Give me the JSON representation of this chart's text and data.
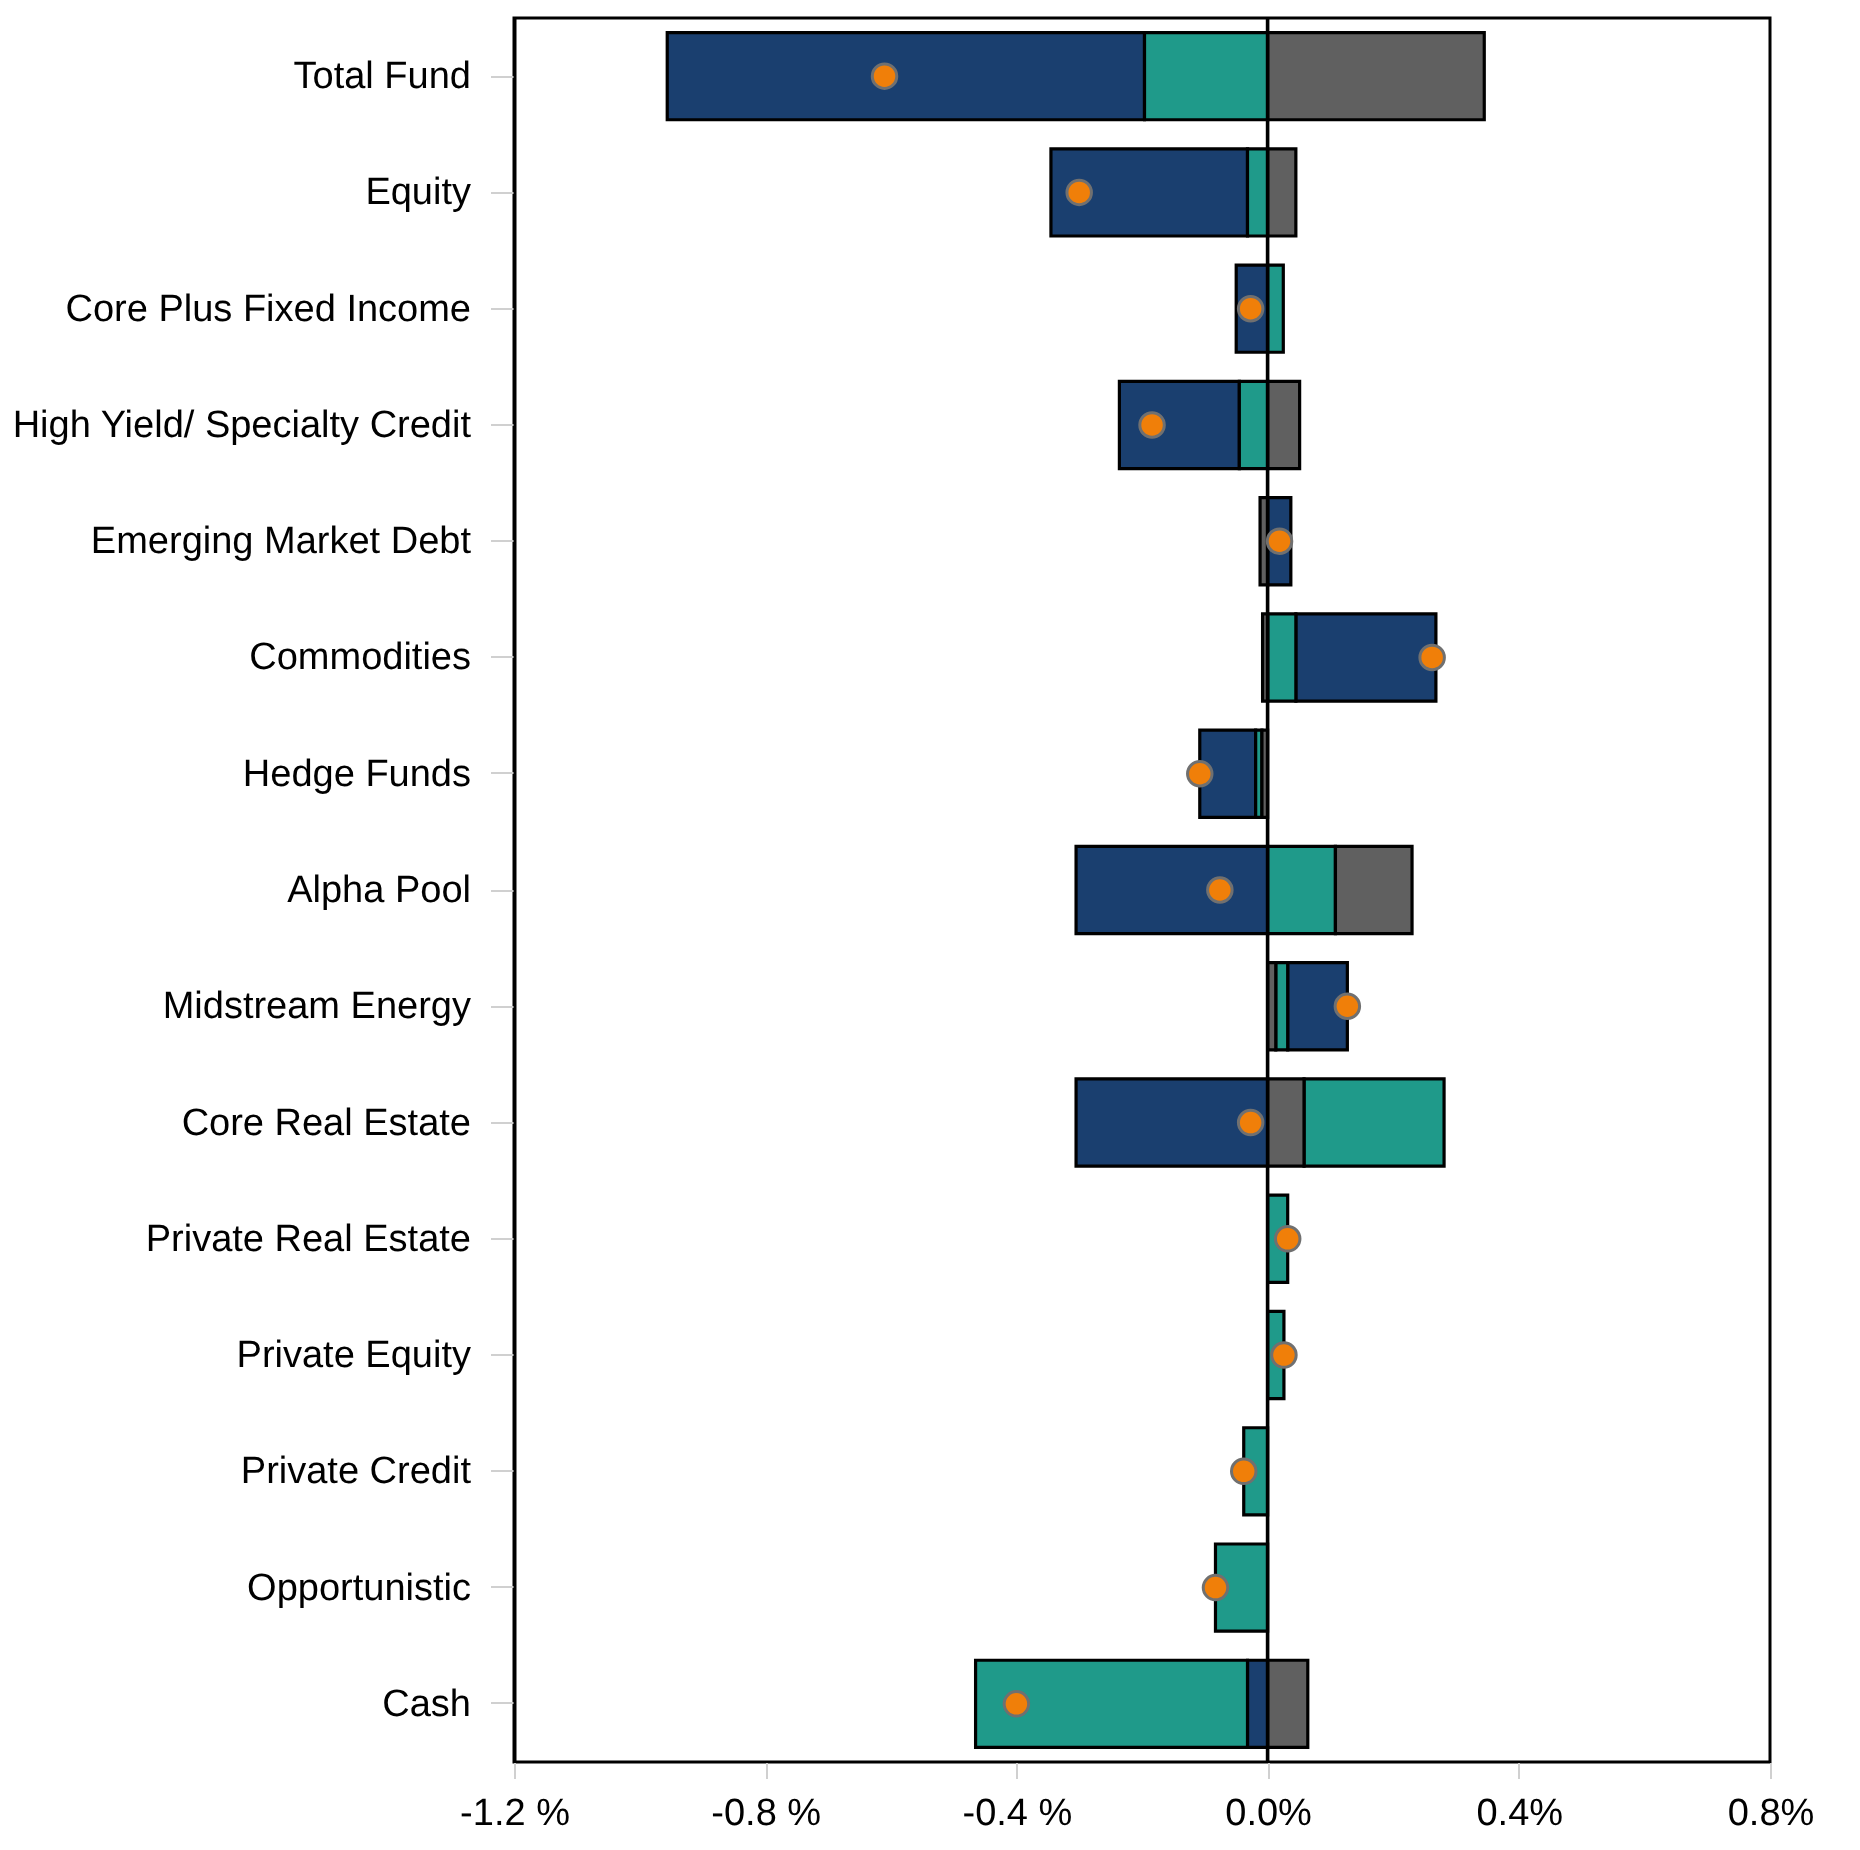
{
  "chart_data": {
    "type": "bar",
    "orientation": "horizontal",
    "categories": [
      "Total Fund",
      "Equity",
      "Core Plus Fixed Income",
      "High Yield/ Specialty Credit",
      "Emerging Market Debt",
      "Commodities",
      "Hedge Funds",
      "Alpha Pool",
      "Midstream Energy",
      "Core Real Estate",
      "Private Real Estate",
      "Private Equity",
      "Private Credit",
      "Opportunistic",
      "Cash"
    ],
    "series": [
      {
        "color": "#1a3f6f",
        "base": [
          -0.196,
          -0.032,
          0,
          -0.045,
          0,
          0.045,
          -0.019,
          0,
          0.032,
          0,
          null,
          null,
          null,
          null,
          0
        ],
        "values": [
          -0.76,
          -0.313,
          -0.05,
          -0.191,
          0.037,
          0.223,
          -0.089,
          -0.305,
          0.095,
          -0.305,
          null,
          null,
          null,
          null,
          -0.032
        ]
      },
      {
        "color": "#1f9a8a",
        "base": [
          0,
          0,
          0,
          0,
          null,
          0,
          -0.009,
          0,
          0.013,
          0.058,
          0,
          0,
          0,
          0,
          -0.032
        ],
        "values": [
          -0.196,
          -0.032,
          0.025,
          -0.045,
          null,
          0.045,
          -0.01,
          0.108,
          0.019,
          0.223,
          0.032,
          0.026,
          -0.038,
          -0.083,
          -0.433
        ]
      },
      {
        "color": "#606060",
        "base": [
          0,
          0,
          null,
          0,
          0,
          0,
          0,
          0.108,
          0,
          0,
          null,
          null,
          null,
          null,
          0
        ],
        "values": [
          0.345,
          0.045,
          null,
          0.051,
          -0.012,
          -0.008,
          -0.009,
          0.122,
          0.013,
          0.058,
          null,
          null,
          null,
          null,
          0.064
        ]
      },
      {
        "type": "scatter",
        "color": "#f07f09",
        "values": [
          -0.61,
          -0.3,
          -0.027,
          -0.184,
          0.019,
          0.262,
          -0.108,
          -0.076,
          0.127,
          -0.027,
          0.032,
          0.026,
          -0.038,
          -0.083,
          -0.4
        ]
      }
    ],
    "xlim": [
      -1.2,
      0.8
    ],
    "xticks": [
      {
        "value": -1.2,
        "label": "-1.2 %"
      },
      {
        "value": -0.8,
        "label": "-0.8 %"
      },
      {
        "value": -0.4,
        "label": "-0.4 %"
      },
      {
        "value": 0,
        "label": "0.0%"
      },
      {
        "value": 0.4,
        "label": "0.4%"
      },
      {
        "value": 0.8,
        "label": "0.8%"
      }
    ],
    "marker": "circle",
    "ref_lines": [
      {
        "axis": "x",
        "value": 0,
        "color": "#000000"
      }
    ]
  }
}
